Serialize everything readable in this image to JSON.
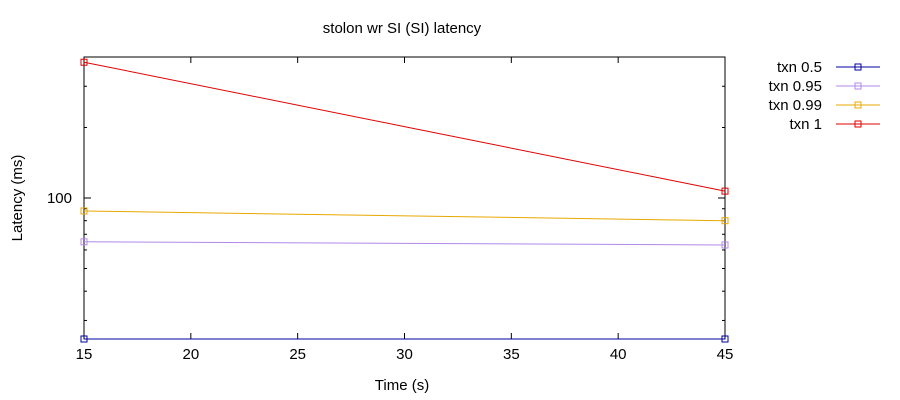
{
  "chart_data": {
    "type": "line",
    "title": "stolon wr SI (SI)  latency",
    "xlabel": "Time (s)",
    "ylabel": "Latency (ms)",
    "y_scale": "log",
    "xlim": [
      15,
      45
    ],
    "ylim": [
      25,
      400
    ],
    "grid": false,
    "legend_position": "top-right, outside plot",
    "x_ticks": [
      15,
      20,
      25,
      30,
      35,
      40,
      45
    ],
    "y_tick_labels": [
      {
        "value": 100,
        "label": "100"
      }
    ],
    "y_minor_ticks": [
      30,
      40,
      50,
      60,
      70,
      80,
      90,
      200,
      300
    ],
    "series": [
      {
        "name": "txn 0.5",
        "color": "#0000a0",
        "x": [
          15,
          45
        ],
        "y": [
          25,
          25
        ]
      },
      {
        "name": "txn 0.95",
        "color": "#b388e8",
        "x": [
          15,
          45
        ],
        "y": [
          65,
          63
        ]
      },
      {
        "name": "txn 0.99",
        "color": "#e8a800",
        "x": [
          15,
          45
        ],
        "y": [
          88,
          80
        ]
      },
      {
        "name": "txn 1",
        "color": "#e00000",
        "x": [
          15,
          45
        ],
        "y": [
          380,
          107
        ]
      }
    ]
  }
}
